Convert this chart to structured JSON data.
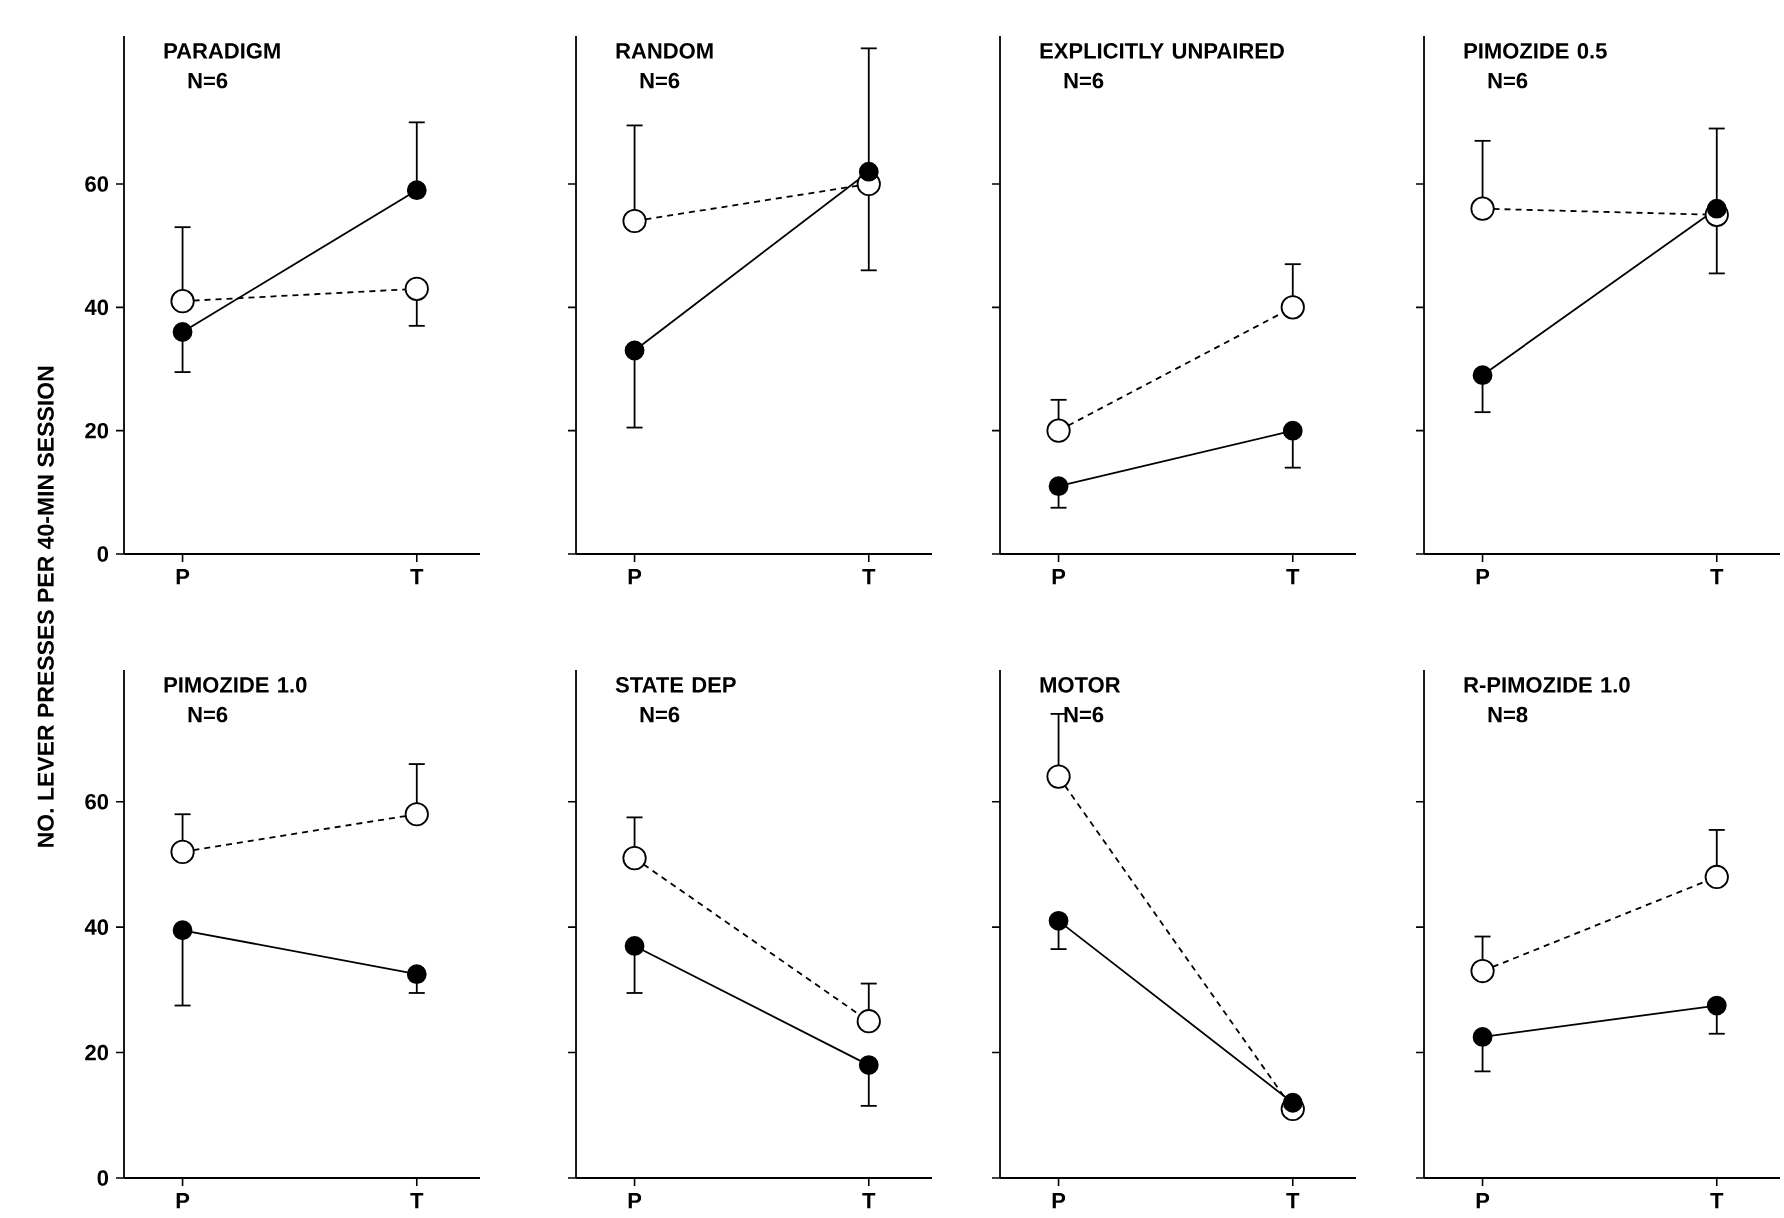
{
  "chart_data": [
    {
      "type": "line",
      "title": "PARADIGM",
      "subtitle": "N=6",
      "ylabel": "NO. LEVER PRESSES PER 40-MIN SESSION",
      "categories": [
        "P",
        "T"
      ],
      "ylim": [
        0,
        84
      ],
      "yticks": [
        0,
        20,
        40,
        60
      ],
      "marker": "circle",
      "series": [
        {
          "color": "#000000",
          "line_style": "dashed",
          "values": [
            41,
            43
          ],
          "errors": [
            [
              41,
              53
            ],
            [
              37,
              43
            ]
          ]
        },
        {
          "color": "#000000",
          "line_style": "solid",
          "values": [
            36,
            59
          ],
          "errors": [
            [
              29.5,
              36
            ],
            [
              59,
              70
            ]
          ]
        }
      ]
    },
    {
      "type": "line",
      "title": "RANDOM",
      "subtitle": "N=6",
      "categories": [
        "P",
        "T"
      ],
      "ylim": [
        0,
        84
      ],
      "yticks": [
        0,
        20,
        40,
        60
      ],
      "tick_labels": "x",
      "marker": "circle",
      "series": [
        {
          "color": "#000000",
          "line_style": "dashed",
          "values": [
            54,
            60
          ],
          "errors": [
            [
              54,
              69.5
            ],
            [
              46,
              60
            ]
          ]
        },
        {
          "color": "#000000",
          "line_style": "solid",
          "values": [
            33,
            62
          ],
          "errors": [
            [
              20.5,
              33
            ],
            [
              62,
              82
            ]
          ]
        }
      ]
    },
    {
      "type": "line",
      "title": "EXPLICITLY UNPAIRED",
      "subtitle": "N=6",
      "categories": [
        "P",
        "T"
      ],
      "ylim": [
        0,
        84
      ],
      "yticks": [
        0,
        20,
        40,
        60
      ],
      "tick_labels": "x",
      "marker": "circle",
      "series": [
        {
          "color": "#000000",
          "line_style": "dashed",
          "values": [
            20,
            40
          ],
          "errors": [
            [
              20,
              25
            ],
            [
              40,
              47
            ]
          ]
        },
        {
          "color": "#000000",
          "line_style": "solid",
          "values": [
            11,
            20
          ],
          "errors": [
            [
              7.5,
              11
            ],
            [
              14,
              20
            ]
          ]
        }
      ]
    },
    {
      "type": "line",
      "title": "PIMOZIDE 0.5",
      "subtitle": "N=6",
      "categories": [
        "P",
        "T"
      ],
      "ylim": [
        0,
        84
      ],
      "yticks": [
        0,
        20,
        40,
        60
      ],
      "tick_labels": "x",
      "marker": "circle",
      "series": [
        {
          "color": "#000000",
          "line_style": "dashed",
          "values": [
            56,
            55
          ],
          "errors": [
            [
              56,
              67
            ],
            [
              45.5,
              55
            ]
          ]
        },
        {
          "color": "#000000",
          "line_style": "solid",
          "values": [
            29,
            56
          ],
          "errors": [
            [
              23,
              29
            ],
            [
              56,
              69
            ]
          ]
        }
      ]
    },
    {
      "type": "line",
      "title": "PIMOZIDE 1.0",
      "subtitle": "N=6",
      "categories": [
        "P",
        "T"
      ],
      "ylim": [
        0,
        81
      ],
      "yticks": [
        0,
        20,
        40,
        60
      ],
      "marker": "circle",
      "series": [
        {
          "color": "#000000",
          "line_style": "dashed",
          "values": [
            52,
            58
          ],
          "errors": [
            [
              52,
              58
            ],
            [
              58,
              66
            ]
          ]
        },
        {
          "color": "#000000",
          "line_style": "solid",
          "values": [
            39.5,
            32.5
          ],
          "errors": [
            [
              27.5,
              39.5
            ],
            [
              29.5,
              32.5
            ]
          ]
        }
      ]
    },
    {
      "type": "line",
      "title": "STATE DEP",
      "subtitle": "N=6",
      "categories": [
        "P",
        "T"
      ],
      "ylim": [
        0,
        81
      ],
      "yticks": [
        0,
        20,
        40,
        60
      ],
      "tick_labels": "x",
      "marker": "circle",
      "series": [
        {
          "color": "#000000",
          "line_style": "dashed",
          "values": [
            51,
            25
          ],
          "errors": [
            [
              51,
              57.5
            ],
            [
              25,
              31
            ]
          ]
        },
        {
          "color": "#000000",
          "line_style": "solid",
          "values": [
            37,
            18
          ],
          "errors": [
            [
              29.5,
              37
            ],
            [
              11.5,
              18
            ]
          ]
        }
      ]
    },
    {
      "type": "line",
      "title": "MOTOR",
      "subtitle": "N=6",
      "categories": [
        "P",
        "T"
      ],
      "ylim": [
        0,
        81
      ],
      "yticks": [
        0,
        20,
        40,
        60
      ],
      "tick_labels": "x",
      "marker": "circle",
      "series": [
        {
          "color": "#000000",
          "line_style": "dashed",
          "values": [
            64,
            11
          ],
          "errors": [
            [
              64,
              74
            ],
            null
          ]
        },
        {
          "color": "#000000",
          "line_style": "solid",
          "values": [
            41,
            12
          ],
          "errors": [
            [
              36.5,
              41
            ],
            null
          ]
        }
      ]
    },
    {
      "type": "line",
      "title": "R-PIMOZIDE 1.0",
      "subtitle": "N=8",
      "categories": [
        "P",
        "T"
      ],
      "ylim": [
        0,
        81
      ],
      "yticks": [
        0,
        20,
        40,
        60
      ],
      "tick_labels": "x",
      "marker": "circle",
      "series": [
        {
          "color": "#000000",
          "line_style": "dashed",
          "values": [
            33,
            48
          ],
          "errors": [
            [
              33,
              38.5
            ],
            [
              48,
              55.5
            ]
          ]
        },
        {
          "color": "#000000",
          "line_style": "solid",
          "values": [
            22.5,
            27.5
          ],
          "errors": [
            [
              17,
              22.5
            ],
            [
              23,
              27.5
            ]
          ]
        }
      ]
    }
  ]
}
